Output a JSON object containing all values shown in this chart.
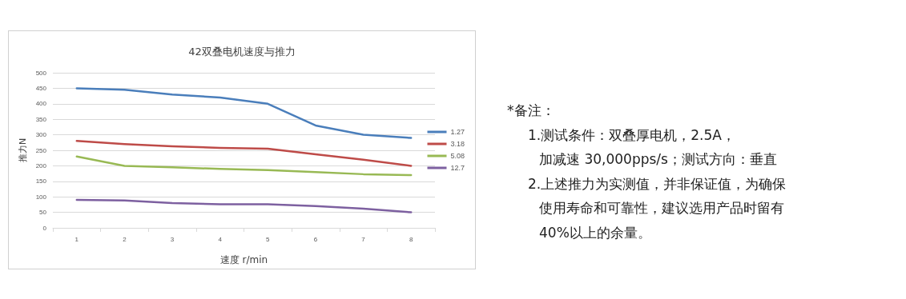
{
  "chart_data": {
    "type": "line",
    "title": "42双叠电机速度与推力",
    "xlabel": "速度 r/min",
    "ylabel": "推力N",
    "categories": [
      "1",
      "2",
      "3",
      "4",
      "5",
      "6",
      "7",
      "8"
    ],
    "series": [
      {
        "name": "1.27",
        "color": "#4a7ebb",
        "values": [
          450,
          445,
          430,
          420,
          400,
          330,
          300,
          290
        ]
      },
      {
        "name": "3.18",
        "color": "#be4b48",
        "values": [
          280,
          270,
          263,
          258,
          255,
          237,
          220,
          200
        ]
      },
      {
        "name": "5.08",
        "color": "#98b954",
        "values": [
          230,
          200,
          195,
          190,
          186,
          180,
          173,
          170
        ]
      },
      {
        "name": "12.7",
        "color": "#7d60a0",
        "values": [
          90,
          88,
          80,
          76,
          76,
          70,
          62,
          50
        ]
      }
    ],
    "ylim": [
      0,
      500
    ],
    "yticks": [
      0,
      50,
      100,
      150,
      200,
      250,
      300,
      350,
      400,
      450,
      500
    ],
    "grid": "y",
    "legend": "right",
    "marker": "none",
    "line_style": "solid",
    "annotations": [
      "*备注：",
      "1.测试条件：双叠厚电机，2.5A，",
      "加减速 30,000pps/s；测试方向：垂直",
      "2.上述推力为实测值，并非保证值，为确保",
      "使用寿命和可靠性，建议选用产品时留有",
      "40%以上的余量。"
    ]
  }
}
